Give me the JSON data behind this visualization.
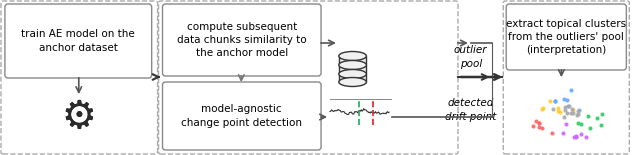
{
  "bg_color": "#ffffff",
  "box_color": "#ffffff",
  "box_edge": "#888888",
  "dash_box_color": "#cccccc",
  "arrow_color": "#555555",
  "box1_text": "train AE model on the\nanchor dataset",
  "box2_text": "compute subsequent\ndata chunks similarity to\nthe anchor model",
  "box3_text": "model-agnostic\nchange point detection",
  "box4_text": "extract topical clusters\nfrom the outliers' pool\n(interpretation)",
  "label_outlier": "outlier\npool",
  "label_drift": "detected\ndrift point",
  "font_size": 7.5
}
